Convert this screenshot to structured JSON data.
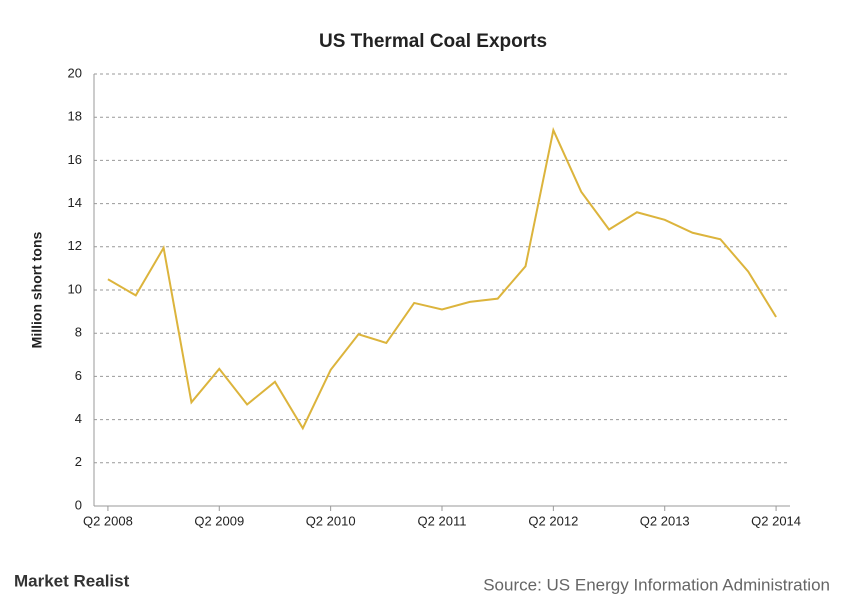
{
  "chart_data": {
    "type": "line",
    "title": "US Thermal Coal Exports",
    "y_label": "Million short tons",
    "categories": [
      "Q2 2008",
      null,
      null,
      null,
      "Q2 2009",
      null,
      null,
      null,
      "Q2 2010",
      null,
      null,
      null,
      "Q2 2011",
      null,
      null,
      null,
      "Q2 2012",
      null,
      null,
      null,
      "Q2 2013",
      null,
      null,
      null,
      "Q2 2014"
    ],
    "series": [
      {
        "name": "US thermal coal exports",
        "color": "#dcb43c",
        "values": [
          10.5,
          9.75,
          11.95,
          4.8,
          6.35,
          4.7,
          5.75,
          3.6,
          6.3,
          7.95,
          7.55,
          9.4,
          9.1,
          9.45,
          9.6,
          11.1,
          17.4,
          14.55,
          12.8,
          13.6,
          13.25,
          12.65,
          12.35,
          10.85,
          8.75
        ]
      }
    ],
    "ylim": [
      0,
      20
    ],
    "yticks": [
      0,
      2,
      4,
      6,
      8,
      10,
      12,
      14,
      16,
      18,
      20
    ],
    "grid": true
  },
  "footer": {
    "logo": "Market Realist",
    "source": "Source: US Energy Information Administration"
  }
}
